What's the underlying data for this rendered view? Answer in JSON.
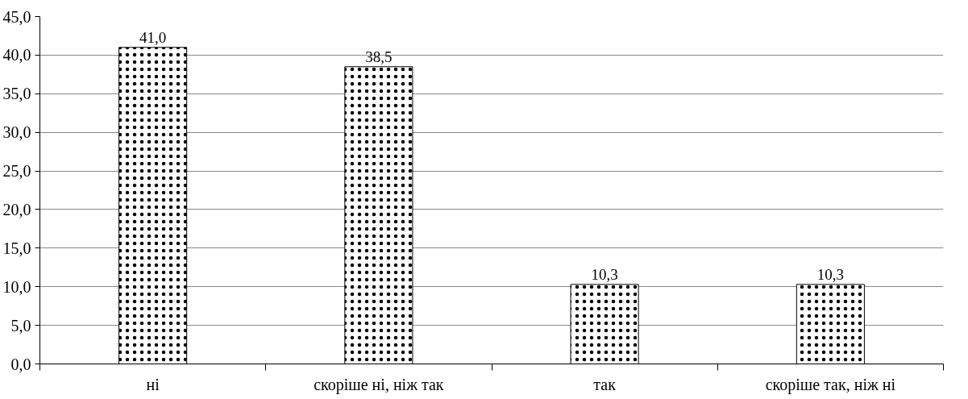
{
  "chart_data": {
    "type": "bar",
    "categories": [
      "ні",
      "скоріше ні, ніж так",
      "так",
      "скоріше так, ніж ні"
    ],
    "values": [
      41.0,
      38.5,
      10.3,
      10.3
    ],
    "value_labels": [
      "41,0",
      "38,5",
      "10,3",
      "10,3"
    ],
    "color": "#ffffff",
    "ylim": [
      0,
      45
    ],
    "yticks": [
      {
        "value": 0,
        "label": "0,0"
      },
      {
        "value": 5,
        "label": "5,0"
      },
      {
        "value": 10,
        "label": "10,0"
      },
      {
        "value": 15,
        "label": "15,0"
      },
      {
        "value": 20,
        "label": "20,0"
      },
      {
        "value": 25,
        "label": "25,0"
      },
      {
        "value": 30,
        "label": "30,0"
      },
      {
        "value": 35,
        "label": "35,0"
      },
      {
        "value": 40,
        "label": "40,0"
      },
      {
        "value": 45,
        "label": "45,0"
      }
    ],
    "grid": "y"
  }
}
